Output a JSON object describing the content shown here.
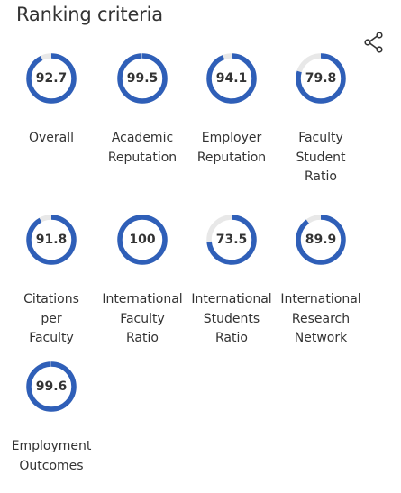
{
  "header": {
    "title": "Ranking criteria",
    "share_icon": "share-icon"
  },
  "colors": {
    "ring_fill": "#2f5fb8",
    "ring_track": "#e8e8e8",
    "text": "#333333"
  },
  "criteria": [
    {
      "label": "Overall",
      "score": "92.7"
    },
    {
      "label": "Academic\nReputation",
      "score": "99.5"
    },
    {
      "label": "Employer\nReputation",
      "score": "94.1"
    },
    {
      "label": "Faculty\nStudent\nRatio",
      "score": "79.8"
    },
    {
      "label": "Citations\nper\nFaculty",
      "score": "91.8"
    },
    {
      "label": "International\nFaculty\nRatio",
      "score": "100"
    },
    {
      "label": "International\nStudents\nRatio",
      "score": "73.5"
    },
    {
      "label": "International\nResearch\nNetwork",
      "score": "89.9"
    },
    {
      "label": "Employment\nOutcomes",
      "score": "99.6"
    }
  ]
}
